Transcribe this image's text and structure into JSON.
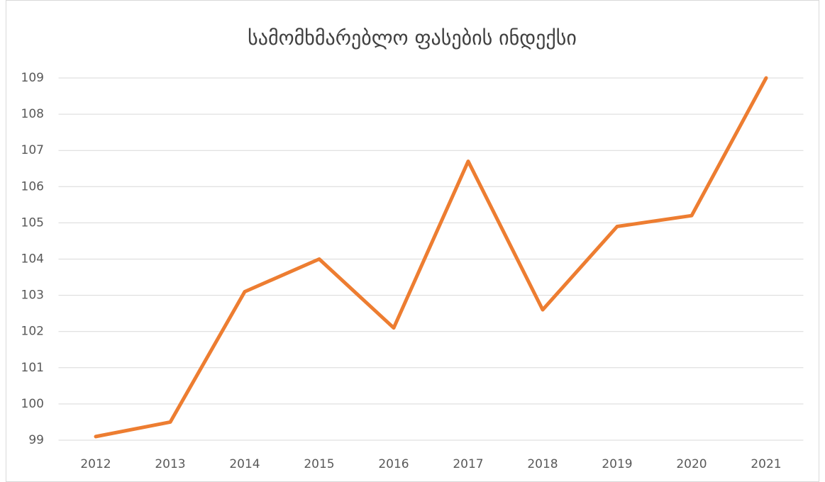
{
  "chart_data": {
    "type": "line",
    "title": "სამომხმარებლო ფასების ინდექსი",
    "categories": [
      "2012",
      "2013",
      "2014",
      "2015",
      "2016",
      "2017",
      "2018",
      "2019",
      "2020",
      "2021"
    ],
    "series": [
      {
        "color": "#ed7d31",
        "values": [
          99.1,
          99.5,
          103.1,
          104.0,
          102.1,
          106.7,
          102.6,
          104.9,
          105.2,
          109.0
        ]
      }
    ],
    "ylim": [
      99,
      109
    ],
    "yticks": [
      99,
      100,
      101,
      102,
      103,
      104,
      105,
      106,
      107,
      108,
      109
    ],
    "grid": true
  }
}
